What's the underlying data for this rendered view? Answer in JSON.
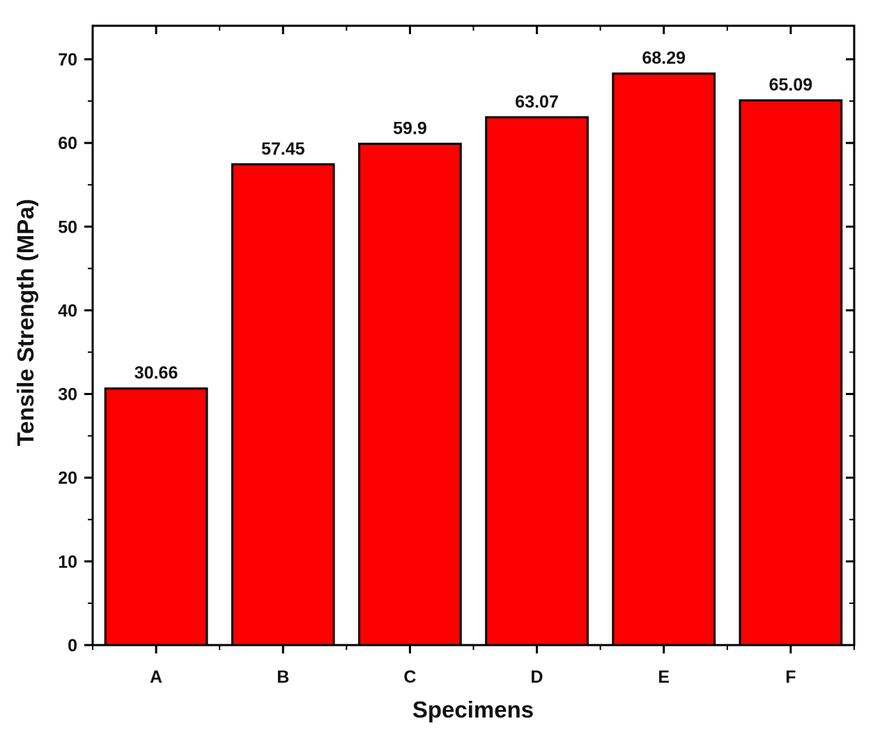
{
  "chart_data": {
    "type": "bar",
    "title": "",
    "xlabel": "Specimens",
    "ylabel": "Tensile Strength (MPa)",
    "categories": [
      "A",
      "B",
      "C",
      "D",
      "E",
      "F"
    ],
    "values": [
      30.66,
      57.45,
      59.9,
      63.07,
      68.29,
      65.09
    ],
    "data_labels": [
      "30.66",
      "57.45",
      "59.9",
      "63.07",
      "68.29",
      "65.09"
    ],
    "ylim": [
      0,
      74
    ],
    "yticks": [
      0,
      10,
      20,
      30,
      40,
      50,
      60,
      70
    ],
    "yticks_minor_step": 5,
    "grid": false,
    "legend": "none",
    "bar_color": "#ff0000",
    "edge_color": "#000000"
  }
}
